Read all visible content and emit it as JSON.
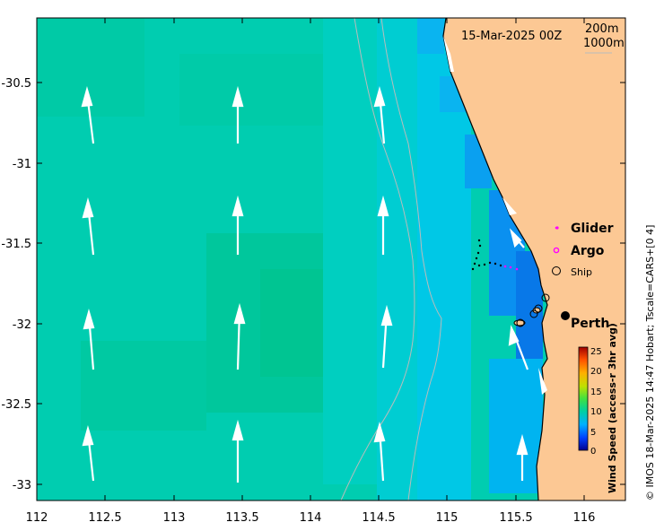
{
  "map": {
    "timestamp": "15-Mar-2025 00Z",
    "depth_contours": [
      "200m",
      "1000m"
    ],
    "city_label": "Perth",
    "credit": "© IMOS 18-Mar-2025 14:47 Hobart; Tscale=CARS+[0 4]"
  },
  "axes": {
    "x_ticks": [
      "112",
      "112.5",
      "113",
      "113.5",
      "114",
      "114.5",
      "115",
      "115.5",
      "116"
    ],
    "y_ticks": [
      "-30.5",
      "-31",
      "-31.5",
      "-32",
      "-32.5",
      "-33"
    ]
  },
  "legend": {
    "glider": "Glider",
    "argo": "Argo",
    "ship": "Ship"
  },
  "colorbar": {
    "label": "Wind Speed (access-r 3hr avg)",
    "ticks": [
      "25",
      "20",
      "15",
      "10",
      "5",
      "0"
    ]
  },
  "colors": {
    "land": "#fcc894",
    "sea_main": "#00cdb0",
    "sea_shallow": "#00c8e6",
    "sea_coastal": "#0aa0f0",
    "arrows": "#ffffff",
    "glider": "#ff00ff"
  }
}
